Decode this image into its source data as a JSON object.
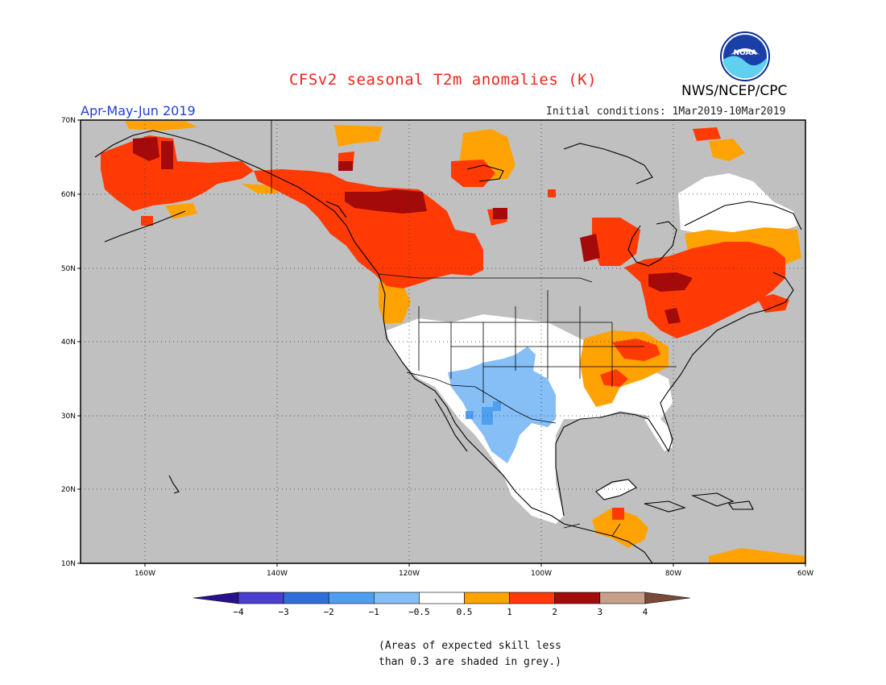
{
  "title": "CFSv2 seasonal T2m anomalies (K)",
  "season": "Apr-May-Jun 2019",
  "initial_conditions": "Initial conditions: 1Mar2019-10Mar2019",
  "agency": "NWS/NCEP/CPC",
  "logo_text": "NOAA",
  "lat_labels": [
    "70N",
    "60N",
    "50N",
    "40N",
    "30N",
    "20N",
    "10N"
  ],
  "lon_labels": [
    "160W",
    "140W",
    "120W",
    "100W",
    "80W",
    "60W"
  ],
  "colorbar": {
    "ticks": [
      "−4",
      "−3",
      "−2",
      "−1",
      "−0.5",
      "0.5",
      "1",
      "2",
      "3",
      "4"
    ],
    "colors": [
      "#2a0f8f",
      "#4a3fd0",
      "#2f6fdc",
      "#4f9ff0",
      "#86bff5",
      "#ffffff",
      "#ffa305",
      "#ff3a05",
      "#a40a0a",
      "#c8a08a",
      "#7a4a3a"
    ]
  },
  "note_line1": "(Areas of expected skill less",
  "note_line2": "than 0.3 are shaded in grey.)",
  "colors": {
    "grey": "#c0c0c0",
    "title": "#e8261d",
    "season": "#1f3fd6"
  }
}
